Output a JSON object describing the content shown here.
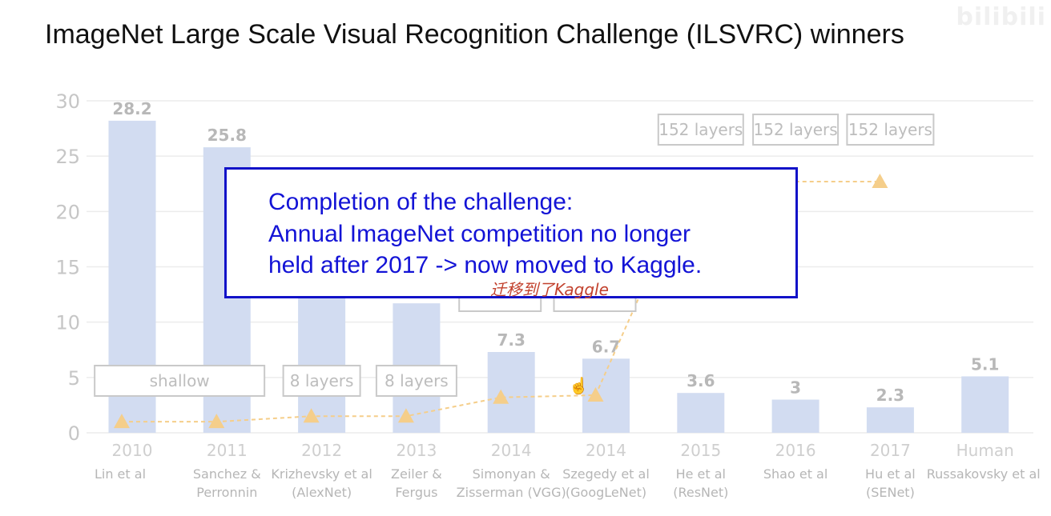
{
  "title": "ImageNet Large Scale Visual Recognition Challenge (ILSVRC) winners",
  "watermark": "bilibili",
  "chart_data": {
    "type": "bar",
    "categories": [
      "2010",
      "2011",
      "2012",
      "2013",
      "2014",
      "2014",
      "2015",
      "2016",
      "2017",
      "Human"
    ],
    "authors": [
      [
        "Lin et al"
      ],
      [
        "Sanchez &",
        "Perronnin"
      ],
      [
        "Krizhevsky et al",
        "(AlexNet)"
      ],
      [
        "Zeiler &",
        "Fergus"
      ],
      [
        "Simonyan &",
        "Zisserman (VGG)"
      ],
      [
        "Szegedy et al",
        "(GoogLeNet)"
      ],
      [
        "He et al",
        "(ResNet)"
      ],
      [
        "Shao et al"
      ],
      [
        "Hu et al",
        "(SENet)"
      ],
      [
        "Russakovsky et al"
      ]
    ],
    "values": [
      28.2,
      25.8,
      16.4,
      11.7,
      7.3,
      6.7,
      3.6,
      3.0,
      2.3,
      5.1
    ],
    "value_labels": [
      "28.2",
      "25.8",
      "",
      "",
      "7.3",
      "6.7",
      "3.6",
      "3",
      "2.3",
      "5.1"
    ],
    "ylim": [
      0,
      30
    ],
    "yticks": [
      0,
      5,
      10,
      15,
      20,
      25,
      30
    ],
    "grid": true,
    "bar_color": "#d2dcf1",
    "line_color": "#f5ce8a",
    "depth_line_values": [
      1.0,
      1.0,
      1.5,
      1.5,
      3.2,
      3.4,
      22.7,
      22.7,
      22.7
    ],
    "depth_labels": [
      {
        "bar": 0.5,
        "level": 4.7,
        "text": "shallow",
        "width": 212
      },
      {
        "bar": 2,
        "level": 4.7,
        "text": "8 layers",
        "width": 96
      },
      {
        "bar": 3,
        "level": 4.7,
        "text": "8 layers",
        "width": 100
      },
      {
        "bar": 6,
        "level": 27.4,
        "text": "152 layers",
        "width": 106
      },
      {
        "bar": 7,
        "level": 27.4,
        "text": "152 layers",
        "width": 106
      },
      {
        "bar": 8,
        "level": 27.4,
        "text": "152 layers",
        "width": 108
      }
    ]
  },
  "callout": {
    "lines": [
      "Completion of the challenge:",
      "Annual ImageNet competition no longer",
      "held after 2017 -> now moved to Kaggle."
    ],
    "border_color": "#1212c8",
    "text_color": "#1313d6"
  },
  "handwritten_note": "迁移到了Kaggle"
}
